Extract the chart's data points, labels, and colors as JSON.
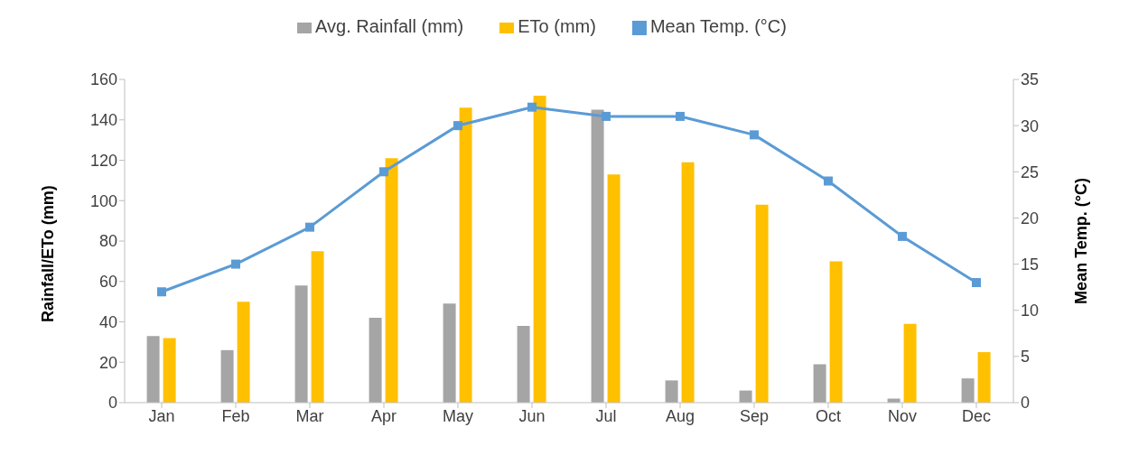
{
  "chart_data": {
    "type": "bar",
    "categories": [
      "Jan",
      "Feb",
      "Mar",
      "Apr",
      "May",
      "Jun",
      "Jul",
      "Aug",
      "Sep",
      "Oct",
      "Nov",
      "Dec"
    ],
    "ylabel": "Rainfall/ETo (mm)",
    "y2label": "Mean Temp. (°C)",
    "ylim": [
      0,
      160
    ],
    "yticks": [
      0,
      20,
      40,
      60,
      80,
      100,
      120,
      140,
      160
    ],
    "y2lim": [
      0,
      35
    ],
    "y2ticks": [
      0,
      5,
      10,
      15,
      20,
      25,
      30,
      35
    ],
    "grid": false,
    "legend": "top",
    "marker": "square",
    "line_style": "solid",
    "series": [
      {
        "name": "Avg. Rainfall (mm)",
        "color": "#a5a5a5",
        "values": [
          33,
          26,
          58,
          42,
          49,
          38,
          145,
          11,
          6,
          19,
          2,
          12
        ]
      },
      {
        "name": "ETo (mm)",
        "color": "#ffc000",
        "values": [
          32,
          50,
          75,
          121,
          146,
          152,
          113,
          119,
          98,
          70,
          39,
          25
        ]
      },
      {
        "name": "Mean Temp. (°C)",
        "type": "line",
        "axis": "y2",
        "color": "#5b9bd5",
        "values": [
          12,
          15,
          19,
          25,
          30,
          32,
          31,
          31,
          29,
          24,
          18,
          13
        ]
      }
    ]
  }
}
